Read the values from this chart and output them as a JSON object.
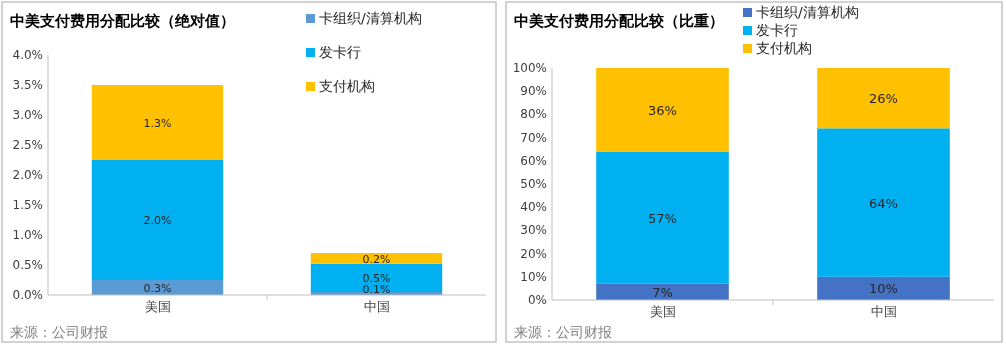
{
  "chart_data": [
    {
      "type": "bar",
      "title": "中美支付费用分配比较（绝对值）",
      "categories": [
        "美国",
        "中国"
      ],
      "stacked": true,
      "legend": "top right",
      "grid": false,
      "series": [
        {
          "name": "卡组织/清算机构",
          "color": "#5b9bd5",
          "values": [
            0.25,
            0.05
          ],
          "value_labels": [
            "0.3%",
            "0.1%"
          ]
        },
        {
          "name": "发卡行",
          "color": "#00b0f0",
          "values": [
            2.0,
            0.47
          ],
          "value_labels": [
            "2.0%",
            "0.5%"
          ]
        },
        {
          "name": "支付机构",
          "color": "#ffc000",
          "values": [
            1.25,
            0.18
          ],
          "value_labels": [
            "1.3%",
            "0.2%"
          ]
        }
      ],
      "ylim": [
        0,
        4.0
      ],
      "yticks": [
        {
          "value": 0,
          "label": "0.0%"
        },
        {
          "value": 0.5,
          "label": "0.5%"
        },
        {
          "value": 1.0,
          "label": "1.0%"
        },
        {
          "value": 1.5,
          "label": "1.5%"
        },
        {
          "value": 2.0,
          "label": "2.0%"
        },
        {
          "value": 2.5,
          "label": "2.5%"
        },
        {
          "value": 3.0,
          "label": "3.0%"
        },
        {
          "value": 3.5,
          "label": "3.5%"
        },
        {
          "value": 4.0,
          "label": "4.0%"
        }
      ],
      "annotations": [
        "来源：公司财报"
      ]
    },
    {
      "type": "bar",
      "title": "中美支付费用分配比较（比重）",
      "categories": [
        "美国",
        "中国"
      ],
      "stacked": true,
      "legend": "top",
      "grid": false,
      "series": [
        {
          "name": "卡组织/清算机构",
          "color": "#4472c4",
          "values": [
            7,
            10
          ],
          "value_labels": [
            "7%",
            "10%"
          ]
        },
        {
          "name": "发卡行",
          "color": "#00b0f0",
          "values": [
            57,
            64
          ],
          "value_labels": [
            "57%",
            "64%"
          ]
        },
        {
          "name": "支付机构",
          "color": "#ffc000",
          "values": [
            36,
            26
          ],
          "value_labels": [
            "36%",
            "26%"
          ]
        }
      ],
      "ylim": [
        0,
        100
      ],
      "yticks": [
        {
          "value": 0,
          "label": "0%"
        },
        {
          "value": 10,
          "label": "10%"
        },
        {
          "value": 20,
          "label": "20%"
        },
        {
          "value": 30,
          "label": "30%"
        },
        {
          "value": 40,
          "label": "40%"
        },
        {
          "value": 50,
          "label": "50%"
        },
        {
          "value": 60,
          "label": "60%"
        },
        {
          "value": 70,
          "label": "70%"
        },
        {
          "value": 80,
          "label": "80%"
        },
        {
          "value": 90,
          "label": "90%"
        },
        {
          "value": 100,
          "label": "100%"
        }
      ],
      "annotations": [
        "来源：公司财报"
      ]
    }
  ]
}
